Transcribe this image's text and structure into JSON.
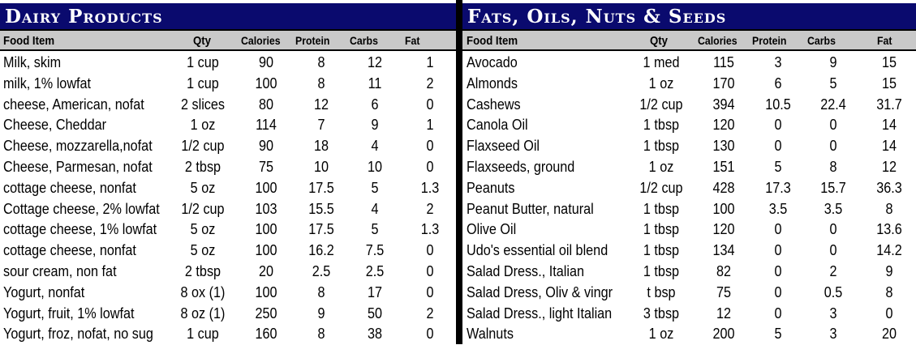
{
  "left": {
    "title": "Dairy Products",
    "headers": {
      "item": "Food Item",
      "qty": "Qty",
      "calories": "Calories",
      "protein": "Protein",
      "carbs": "Carbs",
      "fat": "Fat"
    },
    "rows": [
      {
        "item": "Milk, skim",
        "qty": "1 cup",
        "calories": "90",
        "protein": "8",
        "carbs": "12",
        "fat": "1"
      },
      {
        "item": "milk, 1% lowfat",
        "qty": "1 cup",
        "calories": "100",
        "protein": "8",
        "carbs": "11",
        "fat": "2"
      },
      {
        "item": "cheese, American, nofat",
        "qty": "2 slices",
        "calories": "80",
        "protein": "12",
        "carbs": "6",
        "fat": "0"
      },
      {
        "item": "Cheese, Cheddar",
        "qty": "1 oz",
        "calories": "114",
        "protein": "7",
        "carbs": "9",
        "fat": "1"
      },
      {
        "item": "Cheese, mozzarella,nofat",
        "qty": "1/2 cup",
        "calories": "90",
        "protein": "18",
        "carbs": "4",
        "fat": "0"
      },
      {
        "item": "Cheese, Parmesan, nofat",
        "qty": "2 tbsp",
        "calories": "75",
        "protein": "10",
        "carbs": "10",
        "fat": "0"
      },
      {
        "item": "cottage cheese, nonfat",
        "qty": "5 oz",
        "calories": "100",
        "protein": "17.5",
        "carbs": "5",
        "fat": "1.3"
      },
      {
        "item": "Cottage cheese, 2% lowfat",
        "qty": "1/2 cup",
        "calories": "103",
        "protein": "15.5",
        "carbs": "4",
        "fat": "2"
      },
      {
        "item": "cottage cheese, 1% lowfat",
        "qty": "5 oz",
        "calories": "100",
        "protein": "17.5",
        "carbs": "5",
        "fat": "1.3"
      },
      {
        "item": "cottage cheese, nonfat",
        "qty": "5 oz",
        "calories": "100",
        "protein": "16.2",
        "carbs": "7.5",
        "fat": "0"
      },
      {
        "item": "sour cream, non fat",
        "qty": "2 tbsp",
        "calories": "20",
        "protein": "2.5",
        "carbs": "2.5",
        "fat": "0"
      },
      {
        "item": "Yogurt, nonfat",
        "qty": "8 ox (1)",
        "calories": "100",
        "protein": "8",
        "carbs": "17",
        "fat": "0"
      },
      {
        "item": "Yogurt, fruit, 1% lowfat",
        "qty": "8 oz (1)",
        "calories": "250",
        "protein": "9",
        "carbs": "50",
        "fat": "2"
      },
      {
        "item": "Yogurt, froz, nofat, no sug",
        "qty": "1 cup",
        "calories": "160",
        "protein": "8",
        "carbs": "38",
        "fat": "0"
      }
    ]
  },
  "right": {
    "title": "Fats, Oils, Nuts & Seeds",
    "headers": {
      "item": "Food Item",
      "qty": "Qty",
      "calories": "Calories",
      "protein": "Protein",
      "carbs": "Carbs",
      "fat": "Fat"
    },
    "rows": [
      {
        "item": "Avocado",
        "qty": "1 med",
        "calories": "115",
        "protein": "3",
        "carbs": "9",
        "fat": "15"
      },
      {
        "item": "Almonds",
        "qty": "1 oz",
        "calories": "170",
        "protein": "6",
        "carbs": "5",
        "fat": "15"
      },
      {
        "item": "Cashews",
        "qty": "1/2 cup",
        "calories": "394",
        "protein": "10.5",
        "carbs": "22.4",
        "fat": "31.7"
      },
      {
        "item": "Canola Oil",
        "qty": "1 tbsp",
        "calories": "120",
        "protein": "0",
        "carbs": "0",
        "fat": "14"
      },
      {
        "item": "Flaxseed Oil",
        "qty": "1 tbsp",
        "calories": "130",
        "protein": "0",
        "carbs": "0",
        "fat": "14"
      },
      {
        "item": "Flaxseeds, ground",
        "qty": "1 oz",
        "calories": "151",
        "protein": "5",
        "carbs": "8",
        "fat": "12"
      },
      {
        "item": "Peanuts",
        "qty": "1/2 cup",
        "calories": "428",
        "protein": "17.3",
        "carbs": "15.7",
        "fat": "36.3"
      },
      {
        "item": "Peanut Butter, natural",
        "qty": "1 tbsp",
        "calories": "100",
        "protein": "3.5",
        "carbs": "3.5",
        "fat": "8"
      },
      {
        "item": "Olive Oil",
        "qty": "1 tbsp",
        "calories": "120",
        "protein": "0",
        "carbs": "0",
        "fat": "13.6"
      },
      {
        "item": "Udo's essential oil blend",
        "qty": "1 tbsp",
        "calories": "134",
        "protein": "0",
        "carbs": "0",
        "fat": "14.2"
      },
      {
        "item": "Salad Dress., Italian",
        "qty": "1 tbsp",
        "calories": "82",
        "protein": "0",
        "carbs": "2",
        "fat": "9"
      },
      {
        "item": "Salad Dress, Oliv & vingr",
        "qty": "t bsp",
        "calories": "75",
        "protein": "0",
        "carbs": "0.5",
        "fat": "8"
      },
      {
        "item": "Salad Dress., light Italian",
        "qty": "3 tbsp",
        "calories": "12",
        "protein": "0",
        "carbs": "3",
        "fat": "0"
      },
      {
        "item": "Walnuts",
        "qty": "1 oz",
        "calories": "200",
        "protein": "5",
        "carbs": "3",
        "fat": "20"
      }
    ]
  }
}
